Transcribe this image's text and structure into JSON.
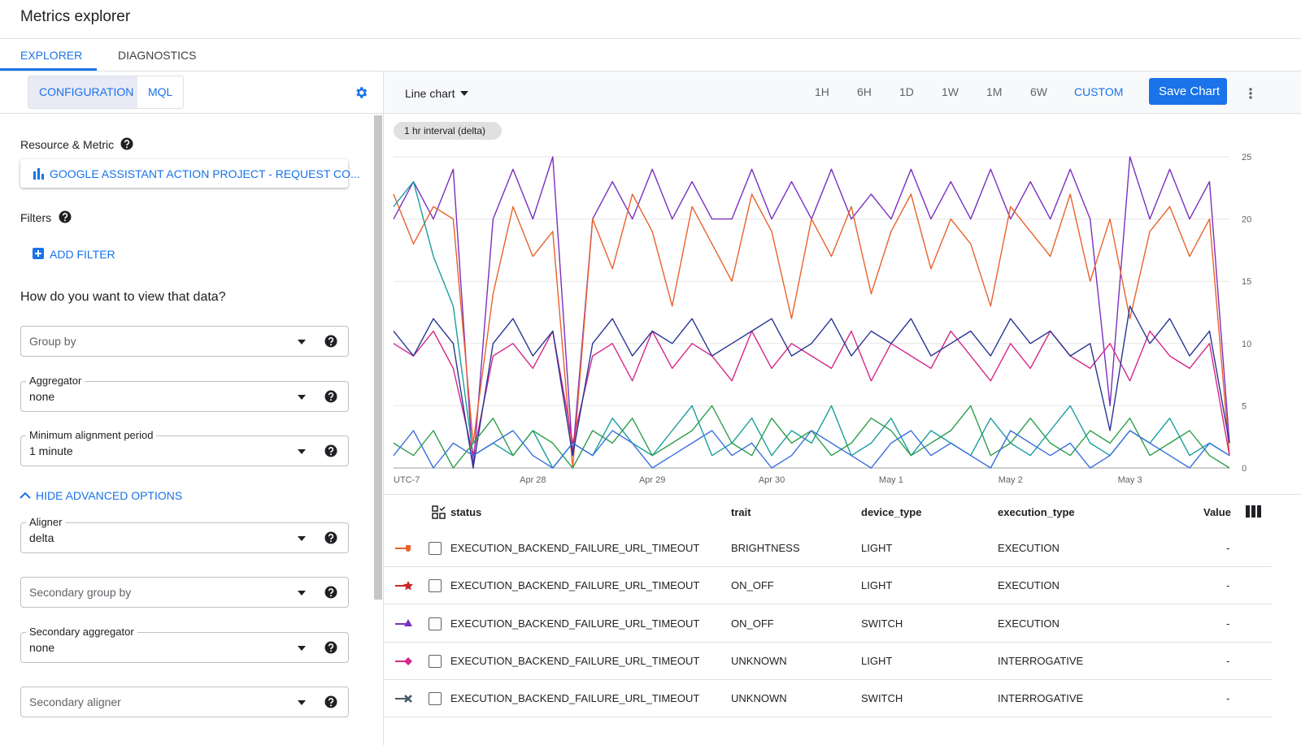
{
  "header": {
    "title": "Metrics explorer"
  },
  "tabs": [
    "EXPLORER",
    "DIAGNOSTICS"
  ],
  "sidebar": {
    "modes": [
      "CONFIGURATION",
      "MQL"
    ],
    "resource_heading": "Resource & Metric",
    "resource_button": "GOOGLE ASSISTANT ACTION PROJECT - REQUEST CO...",
    "filters_heading": "Filters",
    "add_filter": "ADD FILTER",
    "view_heading": "How do you want to view that data?",
    "fields": [
      {
        "placeholder": "Group by"
      },
      {
        "label": "Aggregator",
        "value": "none"
      },
      {
        "label": "Minimum alignment period",
        "value": "1 minute"
      },
      {
        "label": "Aligner",
        "value": "delta"
      },
      {
        "placeholder": "Secondary group by"
      },
      {
        "label": "Secondary aggregator",
        "value": "none"
      },
      {
        "placeholder": "Secondary aligner"
      }
    ],
    "advanced_toggle": "HIDE ADVANCED OPTIONS"
  },
  "toolbar": {
    "chart_type": "Line chart",
    "ranges": [
      "1H",
      "6H",
      "1D",
      "1W",
      "1M",
      "6W"
    ],
    "custom": "CUSTOM",
    "save": "Save Chart",
    "interval_chip": "1 hr interval (delta)"
  },
  "chart_data": {
    "type": "line",
    "categories": [
      "UTC-7",
      null,
      null,
      null,
      null,
      null,
      null,
      "Apr 28",
      null,
      null,
      null,
      null,
      null,
      "Apr 29",
      null,
      null,
      null,
      null,
      null,
      "Apr 30",
      null,
      null,
      null,
      null,
      null,
      "May 1",
      null,
      null,
      null,
      null,
      null,
      "May 2",
      null,
      null,
      null,
      null,
      null,
      "May 3",
      null,
      null,
      null,
      null,
      null
    ],
    "ylim": [
      0,
      25
    ],
    "yticks": [
      0,
      5,
      10,
      15,
      20,
      25
    ],
    "grid": true,
    "series": [
      {
        "color": "#7b2fbf",
        "values": [
          20,
          23,
          20,
          24,
          0,
          20,
          24,
          20,
          25,
          1,
          20,
          23,
          20,
          24,
          20,
          23,
          20,
          20,
          24,
          20,
          23,
          20,
          24,
          20,
          22,
          20,
          24,
          20,
          23,
          20,
          24,
          20,
          23,
          20,
          24,
          20,
          5,
          25,
          20,
          24,
          20,
          23,
          2
        ]
      },
      {
        "color": "#e8622c",
        "values": [
          22,
          18,
          21,
          20,
          2,
          14,
          21,
          17,
          19,
          0,
          20,
          16,
          22,
          19,
          13,
          21,
          18,
          15,
          22,
          19,
          12,
          20,
          17,
          21,
          14,
          19,
          22,
          16,
          20,
          18,
          13,
          21,
          19,
          17,
          22,
          15,
          20,
          12,
          19,
          21,
          17,
          20,
          1
        ]
      },
      {
        "color": "#1a9e9e",
        "values": [
          21,
          23,
          17,
          13,
          1,
          2,
          1,
          3,
          0,
          2,
          1,
          4,
          2,
          1,
          3,
          5,
          1,
          2,
          4,
          1,
          3,
          2,
          5,
          1,
          2,
          4,
          1,
          3,
          2,
          1,
          4,
          2,
          1,
          3,
          5,
          2,
          1,
          3,
          2,
          4,
          1,
          2,
          1
        ]
      },
      {
        "color": "#d6278a",
        "values": [
          10,
          9,
          11,
          8,
          1,
          9,
          10,
          8,
          11,
          2,
          9,
          10,
          7,
          11,
          8,
          10,
          9,
          7,
          11,
          8,
          10,
          9,
          8,
          11,
          7,
          10,
          9,
          8,
          11,
          9,
          7,
          10,
          8,
          11,
          9,
          8,
          10,
          7,
          11,
          9,
          8,
          10,
          1
        ]
      },
      {
        "color": "#283593",
        "values": [
          11,
          9,
          12,
          10,
          0,
          10,
          12,
          9,
          11,
          1,
          10,
          12,
          9,
          11,
          10,
          12,
          9,
          10,
          11,
          12,
          9,
          10,
          12,
          9,
          11,
          10,
          12,
          9,
          10,
          11,
          9,
          12,
          10,
          11,
          9,
          10,
          3,
          13,
          10,
          12,
          9,
          11,
          2
        ]
      },
      {
        "color": "#2e9e4a",
        "values": [
          2,
          1,
          3,
          0,
          2,
          4,
          1,
          3,
          2,
          0,
          3,
          2,
          4,
          1,
          2,
          3,
          5,
          2,
          1,
          4,
          2,
          3,
          1,
          2,
          4,
          3,
          1,
          2,
          3,
          5,
          1,
          2,
          4,
          2,
          1,
          3,
          2,
          4,
          1,
          2,
          3,
          1,
          0
        ]
      },
      {
        "color": "#3b6fe0",
        "values": [
          1,
          3,
          0,
          2,
          1,
          2,
          3,
          1,
          0,
          2,
          1,
          3,
          2,
          0,
          1,
          2,
          3,
          1,
          2,
          0,
          1,
          3,
          2,
          1,
          0,
          2,
          3,
          1,
          2,
          1,
          0,
          3,
          2,
          1,
          2,
          0,
          1,
          3,
          2,
          1,
          0,
          2,
          1
        ]
      }
    ]
  },
  "table": {
    "columns": [
      "status",
      "trait",
      "device_type",
      "execution_type",
      "Value"
    ],
    "marker_colors": [
      "#e8622c",
      "#c62828",
      "#7b2fbf",
      "#d6278a",
      "#455a64"
    ],
    "rows": [
      [
        "EXECUTION_BACKEND_FAILURE_URL_TIMEOUT",
        "BRIGHTNESS",
        "LIGHT",
        "EXECUTION",
        "-"
      ],
      [
        "EXECUTION_BACKEND_FAILURE_URL_TIMEOUT",
        "ON_OFF",
        "LIGHT",
        "EXECUTION",
        "-"
      ],
      [
        "EXECUTION_BACKEND_FAILURE_URL_TIMEOUT",
        "ON_OFF",
        "SWITCH",
        "EXECUTION",
        "-"
      ],
      [
        "EXECUTION_BACKEND_FAILURE_URL_TIMEOUT",
        "UNKNOWN",
        "LIGHT",
        "INTERROGATIVE",
        "-"
      ],
      [
        "EXECUTION_BACKEND_FAILURE_URL_TIMEOUT",
        "UNKNOWN",
        "SWITCH",
        "INTERROGATIVE",
        "-"
      ]
    ]
  }
}
